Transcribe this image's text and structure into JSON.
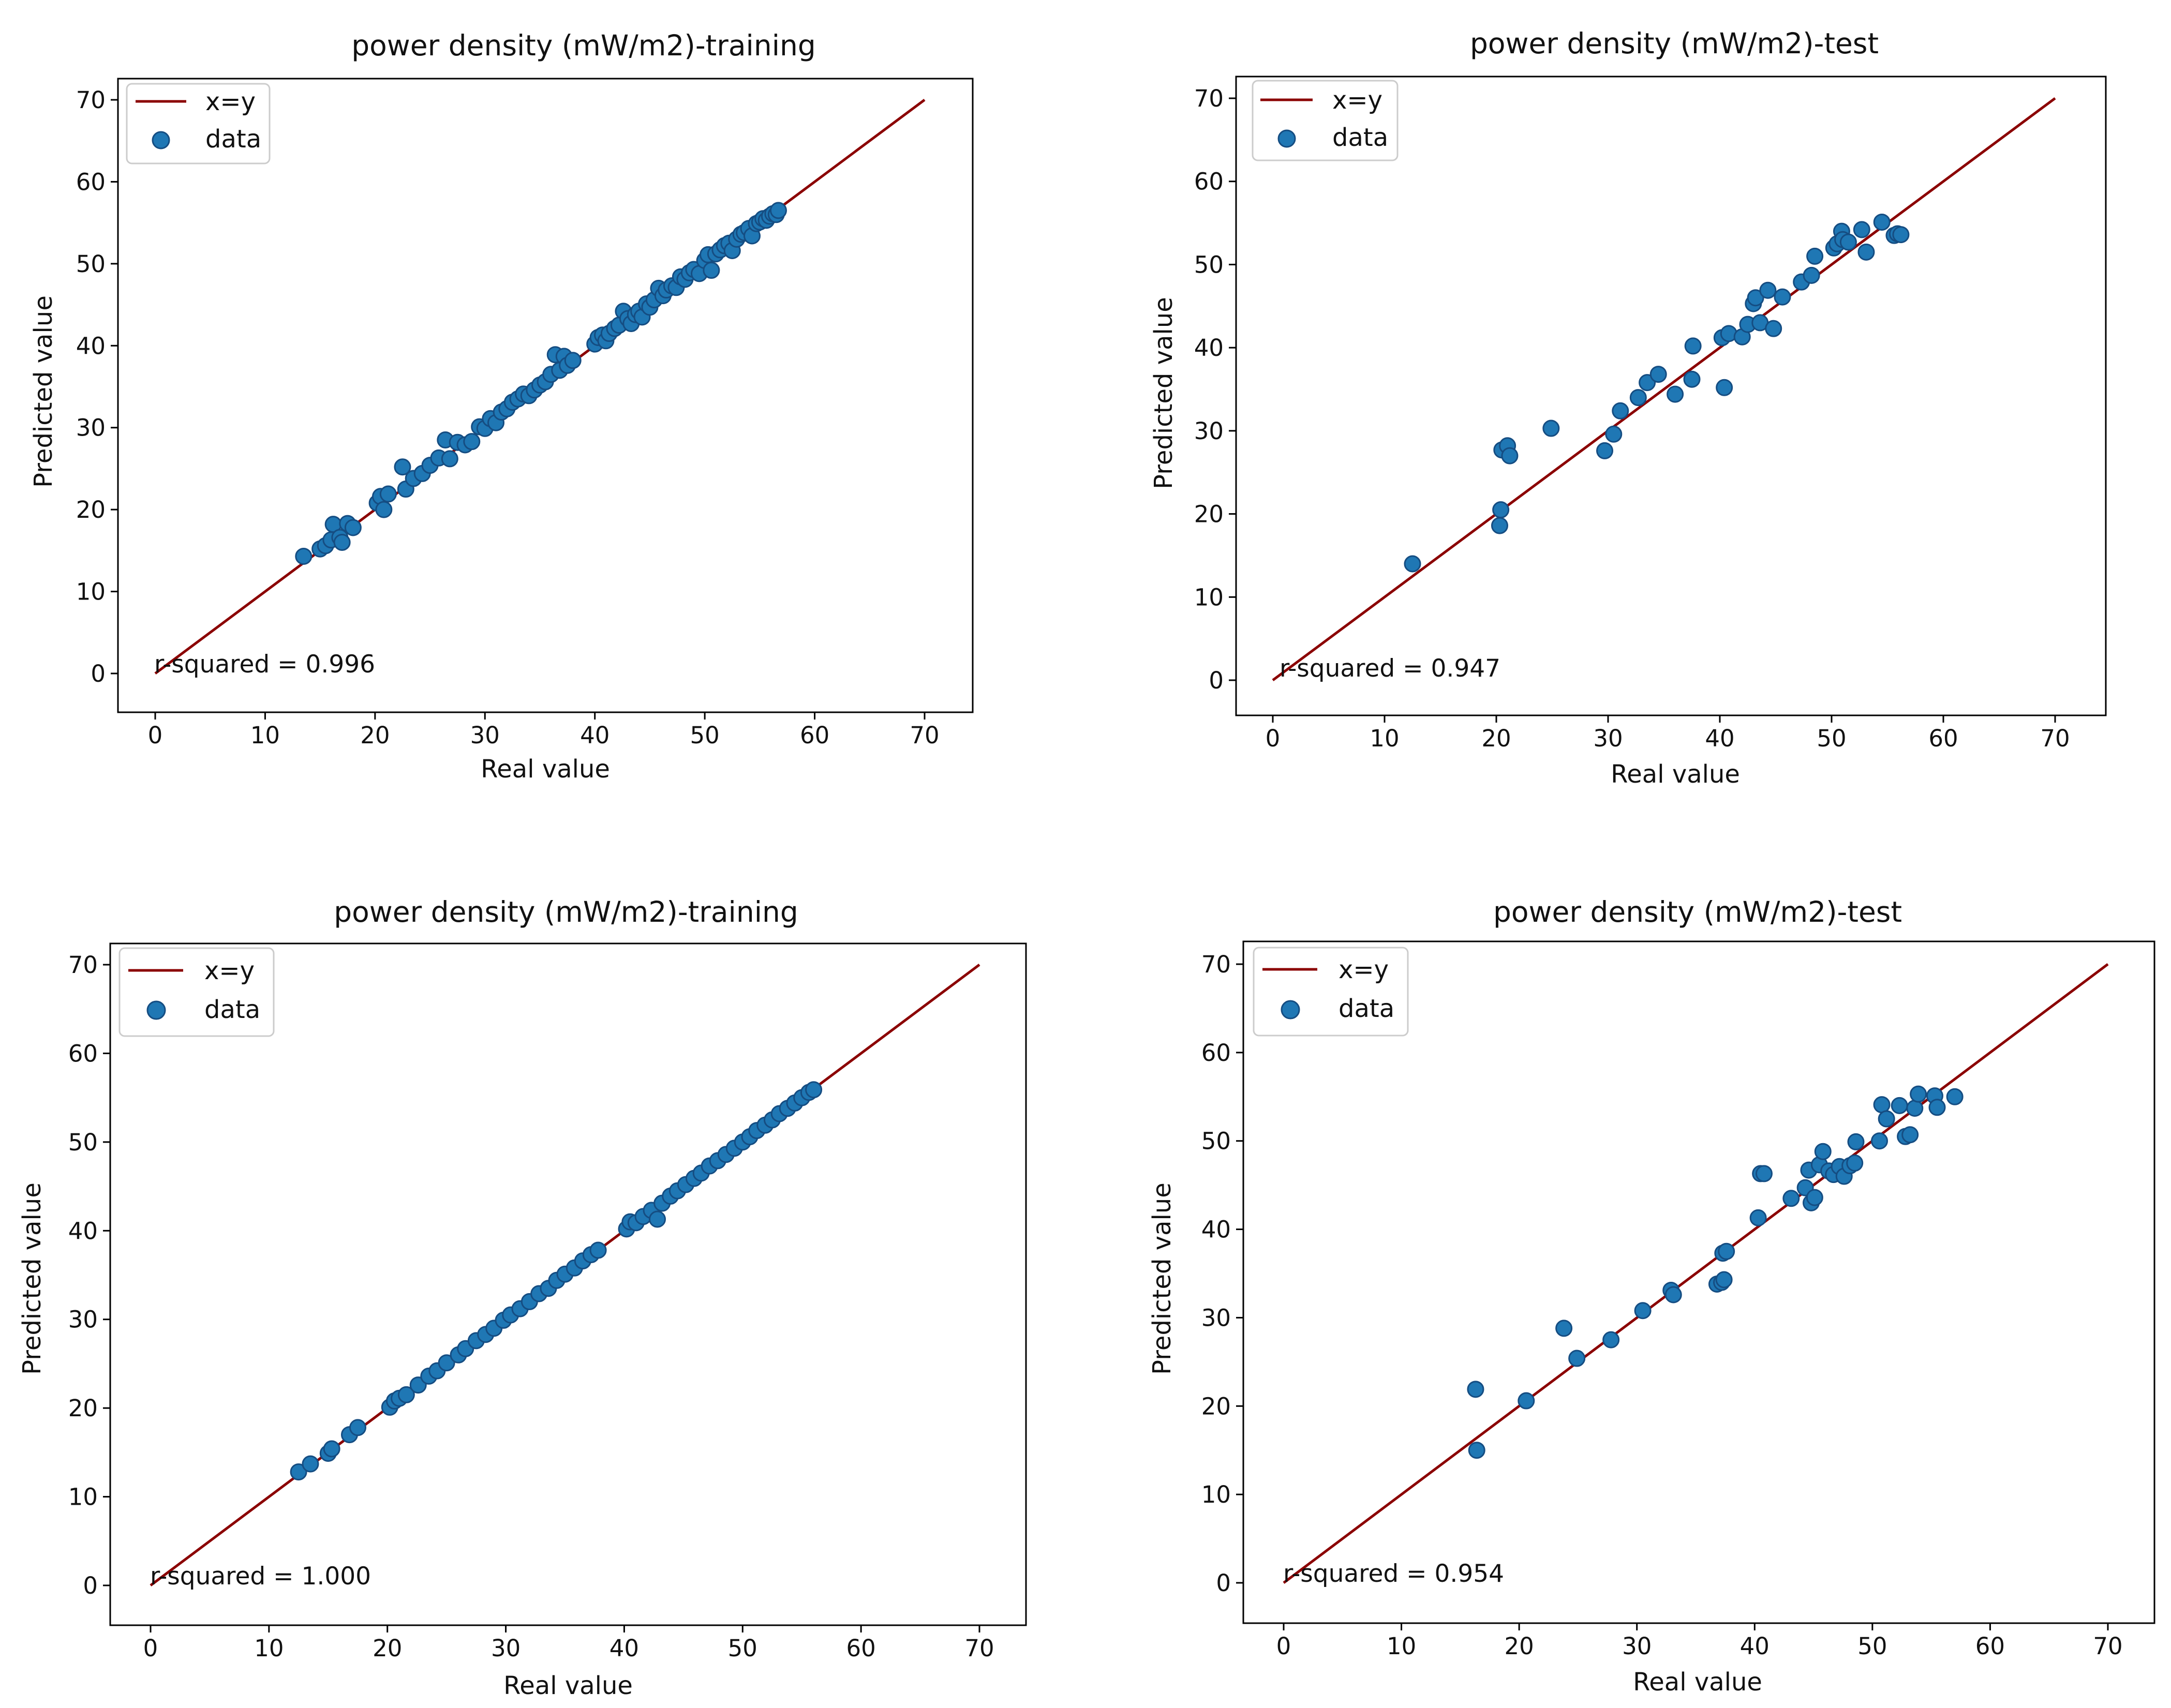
{
  "colors": {
    "line": "#8b0000",
    "marker_fill": "#1f77b4",
    "marker_edge": "#154d82",
    "axes": "#000000",
    "background": "#ffffff"
  },
  "chart_data": [
    {
      "type": "scatter",
      "title": "power density (mW/m2)-training",
      "xlabel": "Real value",
      "ylabel": "Predicted value",
      "xlim": [
        0,
        70
      ],
      "ylim": [
        0,
        70
      ],
      "xticks": [
        0,
        10,
        20,
        30,
        40,
        50,
        60,
        70
      ],
      "yticks": [
        0,
        10,
        20,
        30,
        40,
        50,
        60,
        70
      ],
      "legend": {
        "position": "top-left",
        "line_label": "x=y",
        "scatter_label": "data"
      },
      "reference_line": {
        "label": "x=y",
        "x": [
          0,
          70
        ],
        "y": [
          0,
          70
        ]
      },
      "annotation": "r-squared = 0.996",
      "series": [
        {
          "name": "data",
          "points": [
            [
              13.5,
              14.3
            ],
            [
              15,
              15.2
            ],
            [
              15.5,
              15.6
            ],
            [
              16,
              16.3
            ],
            [
              16.2,
              18.2
            ],
            [
              16.8,
              16.6
            ],
            [
              17,
              16
            ],
            [
              17.5,
              18.3
            ],
            [
              18,
              17.8
            ],
            [
              20.2,
              20.8
            ],
            [
              20.5,
              21.6
            ],
            [
              20.8,
              20
            ],
            [
              21.2,
              21.9
            ],
            [
              22.5,
              25.2
            ],
            [
              22.8,
              22.5
            ],
            [
              23.5,
              23.8
            ],
            [
              24.3,
              24.4
            ],
            [
              25,
              25.4
            ],
            [
              25.8,
              26.3
            ],
            [
              26.4,
              28.5
            ],
            [
              26.8,
              26.2
            ],
            [
              27.5,
              28.2
            ],
            [
              28.2,
              27.9
            ],
            [
              28.8,
              28.3
            ],
            [
              29.5,
              30.1
            ],
            [
              30,
              29.9
            ],
            [
              30.5,
              31.1
            ],
            [
              31,
              30.6
            ],
            [
              31.5,
              31.9
            ],
            [
              32,
              32.3
            ],
            [
              32.5,
              33.1
            ],
            [
              33,
              33.5
            ],
            [
              33.5,
              34.1
            ],
            [
              34,
              33.9
            ],
            [
              34.5,
              34.6
            ],
            [
              35,
              35.2
            ],
            [
              35.5,
              35.6
            ],
            [
              36,
              36.5
            ],
            [
              36.4,
              38.9
            ],
            [
              36.8,
              37
            ],
            [
              37.2,
              38.7
            ],
            [
              37.5,
              37.6
            ],
            [
              38,
              38.2
            ],
            [
              40,
              40.2
            ],
            [
              40.3,
              41
            ],
            [
              40.7,
              41.3
            ],
            [
              41,
              40.6
            ],
            [
              41.3,
              41.5
            ],
            [
              41.8,
              42.1
            ],
            [
              42.2,
              42.5
            ],
            [
              42.6,
              44.2
            ],
            [
              43,
              43.3
            ],
            [
              43.3,
              42.7
            ],
            [
              43.7,
              43.8
            ],
            [
              44,
              44.2
            ],
            [
              44.3,
              43.5
            ],
            [
              44.7,
              45.1
            ],
            [
              45,
              44.7
            ],
            [
              45.4,
              45.6
            ],
            [
              45.8,
              47
            ],
            [
              46.2,
              46.1
            ],
            [
              46.5,
              46.8
            ],
            [
              47,
              47.3
            ],
            [
              47.4,
              47.1
            ],
            [
              47.8,
              48.4
            ],
            [
              48.2,
              48.1
            ],
            [
              48.6,
              48.9
            ],
            [
              49,
              49.3
            ],
            [
              49.5,
              48.8
            ],
            [
              50,
              50.4
            ],
            [
              50.3,
              51.1
            ],
            [
              50.6,
              49.2
            ],
            [
              51,
              51.2
            ],
            [
              51.4,
              51.7
            ],
            [
              51.8,
              52.2
            ],
            [
              52.2,
              52.5
            ],
            [
              52.5,
              51.6
            ],
            [
              52.9,
              53
            ],
            [
              53.3,
              53.6
            ],
            [
              53.6,
              53.8
            ],
            [
              54,
              54.3
            ],
            [
              54.3,
              53.4
            ],
            [
              54.7,
              54.9
            ],
            [
              55,
              55.1
            ],
            [
              55.3,
              55.5
            ],
            [
              55.6,
              55.3
            ],
            [
              55.9,
              55.8
            ],
            [
              56.2,
              56.1
            ],
            [
              56.5,
              56
            ],
            [
              56.7,
              56.5
            ]
          ]
        }
      ]
    },
    {
      "type": "scatter",
      "title": "power density (mW/m2)-test",
      "xlabel": "Real value",
      "ylabel": "Predicted value",
      "xlim": [
        0,
        70
      ],
      "ylim": [
        0,
        70
      ],
      "xticks": [
        0,
        10,
        20,
        30,
        40,
        50,
        60,
        70
      ],
      "yticks": [
        0,
        10,
        20,
        30,
        40,
        50,
        60,
        70
      ],
      "legend": {
        "position": "top-left",
        "line_label": "x=y",
        "scatter_label": "data"
      },
      "reference_line": {
        "label": "x=y",
        "x": [
          0,
          70
        ],
        "y": [
          0,
          70
        ]
      },
      "annotation": "r-squared = 0.947",
      "series": [
        {
          "name": "data",
          "points": [
            [
              12.5,
              14
            ],
            [
              20.3,
              18.6
            ],
            [
              20.4,
              20.5
            ],
            [
              20.5,
              27.7
            ],
            [
              21,
              28.2
            ],
            [
              21.2,
              27
            ],
            [
              24.9,
              30.3
            ],
            [
              29.7,
              27.6
            ],
            [
              30.5,
              29.6
            ],
            [
              31.1,
              32.4
            ],
            [
              32.7,
              34
            ],
            [
              33.5,
              35.8
            ],
            [
              34.5,
              36.8
            ],
            [
              36,
              34.4
            ],
            [
              37.5,
              36.2
            ],
            [
              37.6,
              40.2
            ],
            [
              40.2,
              41.2
            ],
            [
              40.4,
              35.2
            ],
            [
              40.8,
              41.7
            ],
            [
              42,
              41.3
            ],
            [
              42.5,
              42.8
            ],
            [
              43,
              45.3
            ],
            [
              43.2,
              46
            ],
            [
              43.6,
              43
            ],
            [
              44.3,
              46.9
            ],
            [
              44.8,
              42.3
            ],
            [
              45.6,
              46.1
            ],
            [
              47.3,
              47.9
            ],
            [
              48.2,
              48.7
            ],
            [
              48.5,
              51
            ],
            [
              50.2,
              52
            ],
            [
              50.5,
              52.5
            ],
            [
              50.9,
              54
            ],
            [
              51,
              53
            ],
            [
              51.5,
              52.7
            ],
            [
              52.7,
              54.2
            ],
            [
              53.1,
              51.5
            ],
            [
              54.5,
              55.1
            ],
            [
              55.6,
              53.5
            ],
            [
              55.9,
              53.7
            ],
            [
              56.2,
              53.6
            ]
          ]
        }
      ]
    },
    {
      "type": "scatter",
      "title": "power density (mW/m2)-training",
      "xlabel": "Real value",
      "ylabel": "Predicted value",
      "xlim": [
        0,
        70
      ],
      "ylim": [
        0,
        70
      ],
      "xticks": [
        0,
        10,
        20,
        30,
        40,
        50,
        60,
        70
      ],
      "yticks": [
        0,
        10,
        20,
        30,
        40,
        50,
        60,
        70
      ],
      "legend": {
        "position": "top-left",
        "line_label": "x=y",
        "scatter_label": "data"
      },
      "reference_line": {
        "label": "x=y",
        "x": [
          0,
          70
        ],
        "y": [
          0,
          70
        ]
      },
      "annotation": "r-squared = 1.000",
      "series": [
        {
          "name": "data",
          "points": [
            [
              12.5,
              12.8
            ],
            [
              13.5,
              13.7
            ],
            [
              15,
              14.9
            ],
            [
              15.3,
              15.4
            ],
            [
              16.8,
              17
            ],
            [
              17.5,
              17.8
            ],
            [
              20.2,
              20.1
            ],
            [
              20.6,
              20.8
            ],
            [
              21,
              21.1
            ],
            [
              21.6,
              21.5
            ],
            [
              22.6,
              22.6
            ],
            [
              23.5,
              23.6
            ],
            [
              24.2,
              24.2
            ],
            [
              25,
              25.1
            ],
            [
              26,
              26
            ],
            [
              26.6,
              26.7
            ],
            [
              27.5,
              27.6
            ],
            [
              28.3,
              28.3
            ],
            [
              29,
              29
            ],
            [
              29.8,
              29.9
            ],
            [
              30.4,
              30.5
            ],
            [
              31.2,
              31.2
            ],
            [
              32,
              32
            ],
            [
              32.8,
              32.9
            ],
            [
              33.6,
              33.5
            ],
            [
              34.3,
              34.4
            ],
            [
              35,
              35.1
            ],
            [
              35.8,
              35.8
            ],
            [
              36.5,
              36.6
            ],
            [
              37.2,
              37.3
            ],
            [
              37.8,
              37.8
            ],
            [
              40.2,
              40.2
            ],
            [
              40.5,
              41
            ],
            [
              41,
              40.9
            ],
            [
              41.6,
              41.6
            ],
            [
              42.3,
              42.3
            ],
            [
              42.8,
              41.3
            ],
            [
              43.2,
              43.1
            ],
            [
              43.9,
              43.9
            ],
            [
              44.5,
              44.5
            ],
            [
              45.2,
              45.2
            ],
            [
              45.9,
              45.9
            ],
            [
              46.5,
              46.5
            ],
            [
              47.2,
              47.3
            ],
            [
              47.9,
              47.9
            ],
            [
              48.6,
              48.6
            ],
            [
              49.3,
              49.3
            ],
            [
              50,
              50
            ],
            [
              50.6,
              50.6
            ],
            [
              51.2,
              51.3
            ],
            [
              51.9,
              51.9
            ],
            [
              52.5,
              52.5
            ],
            [
              53.1,
              53.2
            ],
            [
              53.8,
              53.8
            ],
            [
              54.4,
              54.4
            ],
            [
              55,
              55
            ],
            [
              55.6,
              55.6
            ],
            [
              56,
              55.9
            ]
          ]
        }
      ]
    },
    {
      "type": "scatter",
      "title": "power density (mW/m2)-test",
      "xlabel": "Real value",
      "ylabel": "Predicted value",
      "xlim": [
        0,
        70
      ],
      "ylim": [
        0,
        70
      ],
      "xticks": [
        0,
        10,
        20,
        30,
        40,
        50,
        60,
        70
      ],
      "yticks": [
        0,
        10,
        20,
        30,
        40,
        50,
        60,
        70
      ],
      "legend": {
        "position": "top-left",
        "line_label": "x=y",
        "scatter_label": "data"
      },
      "reference_line": {
        "label": "x=y",
        "x": [
          0,
          70
        ],
        "y": [
          0,
          70
        ]
      },
      "annotation": "r-squared = 0.954",
      "series": [
        {
          "name": "data",
          "points": [
            [
              16.3,
              21.9
            ],
            [
              16.4,
              15
            ],
            [
              20.6,
              20.6
            ],
            [
              23.8,
              28.8
            ],
            [
              24.9,
              25.4
            ],
            [
              27.8,
              27.5
            ],
            [
              30.5,
              30.8
            ],
            [
              32.9,
              33.1
            ],
            [
              33.1,
              32.6
            ],
            [
              36.8,
              33.8
            ],
            [
              37.2,
              34
            ],
            [
              37.4,
              34.3
            ],
            [
              37.3,
              37.3
            ],
            [
              37.6,
              37.5
            ],
            [
              40.3,
              41.3
            ],
            [
              40.5,
              46.3
            ],
            [
              40.8,
              46.3
            ],
            [
              43.1,
              43.5
            ],
            [
              44.3,
              44.7
            ],
            [
              44.6,
              46.7
            ],
            [
              44.8,
              43
            ],
            [
              45.1,
              43.6
            ],
            [
              45.5,
              47.3
            ],
            [
              45.8,
              48.8
            ],
            [
              46.3,
              46.6
            ],
            [
              46.7,
              46.2
            ],
            [
              47.2,
              47.1
            ],
            [
              47.6,
              46
            ],
            [
              48.1,
              47.2
            ],
            [
              48.5,
              47.5
            ],
            [
              48.6,
              49.9
            ],
            [
              50.6,
              50
            ],
            [
              50.8,
              54.1
            ],
            [
              51.2,
              52.5
            ],
            [
              52.3,
              54
            ],
            [
              52.8,
              50.5
            ],
            [
              53.2,
              50.7
            ],
            [
              53.6,
              53.7
            ],
            [
              53.9,
              55.3
            ],
            [
              55.3,
              55.1
            ],
            [
              55.5,
              53.8
            ],
            [
              57,
              55
            ]
          ]
        }
      ]
    }
  ]
}
